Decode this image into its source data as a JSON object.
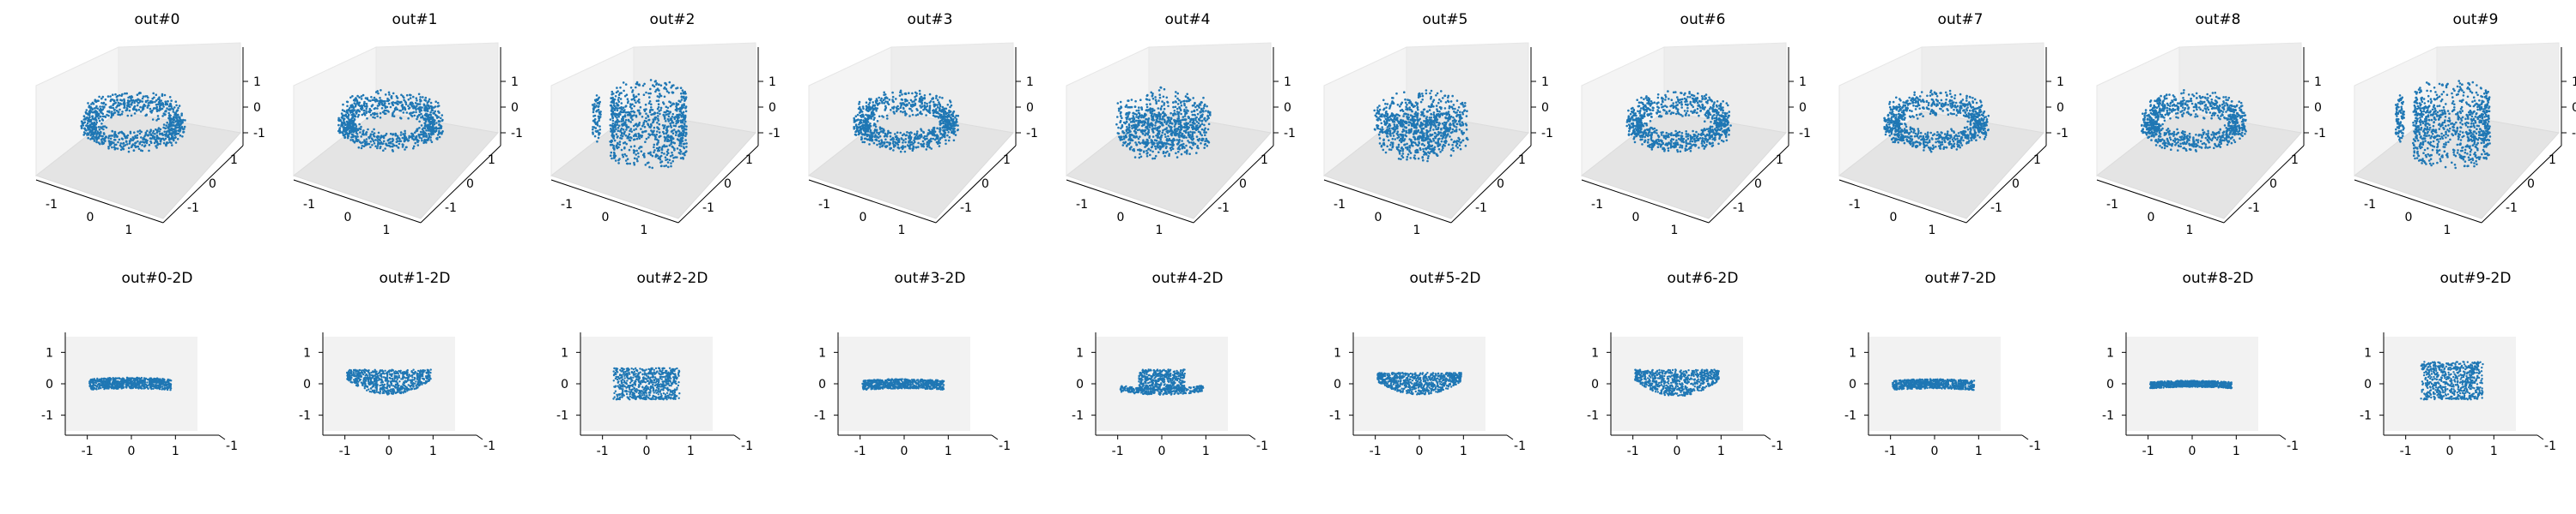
{
  "figure": {
    "point_color": "#1f77b4",
    "pane_color": "#f2f2f2",
    "grid": false
  },
  "chart_data": [
    {
      "type": "scatter",
      "projection": "3d",
      "title": "out#0",
      "shape": "ring",
      "ticks": [
        "-1",
        "0",
        "1"
      ],
      "xlim": [
        -1.5,
        1.5
      ],
      "ylim": [
        -1.5,
        1.5
      ],
      "zlim": [
        -1.5,
        1.5
      ]
    },
    {
      "type": "scatter",
      "projection": "3d",
      "title": "out#1",
      "shape": "ring",
      "ticks": [
        "-1",
        "0",
        "1"
      ],
      "xlim": [
        -1.5,
        1.5
      ],
      "ylim": [
        -1.5,
        1.5
      ],
      "zlim": [
        -1.5,
        1.5
      ]
    },
    {
      "type": "scatter",
      "projection": "3d",
      "title": "out#2",
      "shape": "cup",
      "ticks": [
        "-1",
        "0",
        "1"
      ],
      "xlim": [
        -1.5,
        1.5
      ],
      "ylim": [
        -1.5,
        1.5
      ],
      "zlim": [
        -1.5,
        1.5
      ]
    },
    {
      "type": "scatter",
      "projection": "3d",
      "title": "out#3",
      "shape": "ring",
      "ticks": [
        "-1",
        "0",
        "1"
      ],
      "xlim": [
        -1.5,
        1.5
      ],
      "ylim": [
        -1.5,
        1.5
      ],
      "zlim": [
        -1.5,
        1.5
      ]
    },
    {
      "type": "scatter",
      "projection": "3d",
      "title": "out#4",
      "shape": "bowl",
      "ticks": [
        "-1",
        "0",
        "1"
      ],
      "xlim": [
        -1.5,
        1.5
      ],
      "ylim": [
        -1.5,
        1.5
      ],
      "zlim": [
        -1.5,
        1.5
      ]
    },
    {
      "type": "scatter",
      "projection": "3d",
      "title": "out#5",
      "shape": "bowl",
      "ticks": [
        "-1",
        "0",
        "1"
      ],
      "xlim": [
        -1.5,
        1.5
      ],
      "ylim": [
        -1.5,
        1.5
      ],
      "zlim": [
        -1.5,
        1.5
      ]
    },
    {
      "type": "scatter",
      "projection": "3d",
      "title": "out#6",
      "shape": "ring",
      "ticks": [
        "-1",
        "0",
        "1"
      ],
      "xlim": [
        -1.5,
        1.5
      ],
      "ylim": [
        -1.5,
        1.5
      ],
      "zlim": [
        -1.5,
        1.5
      ]
    },
    {
      "type": "scatter",
      "projection": "3d",
      "title": "out#7",
      "shape": "ring",
      "ticks": [
        "-1",
        "0",
        "1"
      ],
      "xlim": [
        -1.5,
        1.5
      ],
      "ylim": [
        -1.5,
        1.5
      ],
      "zlim": [
        -1.5,
        1.5
      ]
    },
    {
      "type": "scatter",
      "projection": "3d",
      "title": "out#8",
      "shape": "ring",
      "ticks": [
        "-1",
        "0",
        "1"
      ],
      "xlim": [
        -1.5,
        1.5
      ],
      "ylim": [
        -1.5,
        1.5
      ],
      "zlim": [
        -1.5,
        1.5
      ]
    },
    {
      "type": "scatter",
      "projection": "3d",
      "title": "out#9",
      "shape": "cup",
      "ticks": [
        "-1",
        "0",
        "1"
      ],
      "xlim": [
        -1.5,
        1.5
      ],
      "ylim": [
        -1.5,
        1.5
      ],
      "zlim": [
        -1.5,
        1.5
      ]
    },
    {
      "type": "scatter",
      "projection": "2d-view",
      "title": "out#0-2D",
      "ticks": [
        "-1",
        "0",
        "1"
      ],
      "depth_tick": "-1",
      "xlim": [
        -1.5,
        1.5
      ],
      "ylim": [
        -1.5,
        1.5
      ],
      "x_extent": [
        -0.95,
        0.9
      ],
      "y_extent": [
        -0.15,
        0.2
      ],
      "form": "band"
    },
    {
      "type": "scatter",
      "projection": "2d-view",
      "title": "out#1-2D",
      "ticks": [
        "-1",
        "0",
        "1"
      ],
      "depth_tick": "-1",
      "xlim": [
        -1.5,
        1.5
      ],
      "ylim": [
        -1.5,
        1.5
      ],
      "x_extent": [
        -0.95,
        0.95
      ],
      "y_extent": [
        -0.35,
        0.45
      ],
      "form": "bowl"
    },
    {
      "type": "scatter",
      "projection": "2d-view",
      "title": "out#2-2D",
      "ticks": [
        "-1",
        "0",
        "1"
      ],
      "depth_tick": "-1",
      "xlim": [
        -1.5,
        1.5
      ],
      "ylim": [
        -1.5,
        1.5
      ],
      "x_extent": [
        -0.75,
        0.75
      ],
      "y_extent": [
        -0.5,
        0.5
      ],
      "form": "box"
    },
    {
      "type": "scatter",
      "projection": "2d-view",
      "title": "out#3-2D",
      "ticks": [
        "-1",
        "0",
        "1"
      ],
      "depth_tick": "-1",
      "xlim": [
        -1.5,
        1.5
      ],
      "ylim": [
        -1.5,
        1.5
      ],
      "x_extent": [
        -0.95,
        0.9
      ],
      "y_extent": [
        -0.15,
        0.15
      ],
      "form": "band"
    },
    {
      "type": "scatter",
      "projection": "2d-view",
      "title": "out#4-2D",
      "ticks": [
        "-1",
        "0",
        "1"
      ],
      "depth_tick": "-1",
      "xlim": [
        -1.5,
        1.5
      ],
      "ylim": [
        -1.5,
        1.5
      ],
      "x_extent": [
        -0.95,
        0.95
      ],
      "y_extent": [
        -0.35,
        0.45
      ],
      "form": "hat"
    },
    {
      "type": "scatter",
      "projection": "2d-view",
      "title": "out#5-2D",
      "ticks": [
        "-1",
        "0",
        "1"
      ],
      "depth_tick": "-1",
      "xlim": [
        -1.5,
        1.5
      ],
      "ylim": [
        -1.5,
        1.5
      ],
      "x_extent": [
        -0.95,
        0.95
      ],
      "y_extent": [
        -0.35,
        0.35
      ],
      "form": "bowl"
    },
    {
      "type": "scatter",
      "projection": "2d-view",
      "title": "out#6-2D",
      "ticks": [
        "-1",
        "0",
        "1"
      ],
      "depth_tick": "-1",
      "xlim": [
        -1.5,
        1.5
      ],
      "ylim": [
        -1.5,
        1.5
      ],
      "x_extent": [
        -0.95,
        0.95
      ],
      "y_extent": [
        -0.4,
        0.45
      ],
      "form": "bowl"
    },
    {
      "type": "scatter",
      "projection": "2d-view",
      "title": "out#7-2D",
      "ticks": [
        "-1",
        "0",
        "1"
      ],
      "depth_tick": "-1",
      "xlim": [
        -1.5,
        1.5
      ],
      "ylim": [
        -1.5,
        1.5
      ],
      "x_extent": [
        -0.95,
        0.9
      ],
      "y_extent": [
        -0.15,
        0.15
      ],
      "form": "band"
    },
    {
      "type": "scatter",
      "projection": "2d-view",
      "title": "out#8-2D",
      "ticks": [
        "-1",
        "0",
        "1"
      ],
      "depth_tick": "-1",
      "xlim": [
        -1.5,
        1.5
      ],
      "ylim": [
        -1.5,
        1.5
      ],
      "x_extent": [
        -0.95,
        0.9
      ],
      "y_extent": [
        -0.1,
        0.1
      ],
      "form": "band"
    },
    {
      "type": "scatter",
      "projection": "2d-view",
      "title": "out#9-2D",
      "ticks": [
        "-1",
        "0",
        "1"
      ],
      "depth_tick": "-1",
      "xlim": [
        -1.5,
        1.5
      ],
      "ylim": [
        -1.5,
        1.5
      ],
      "x_extent": [
        -0.65,
        0.75
      ],
      "y_extent": [
        -0.5,
        0.7
      ],
      "form": "box"
    }
  ]
}
